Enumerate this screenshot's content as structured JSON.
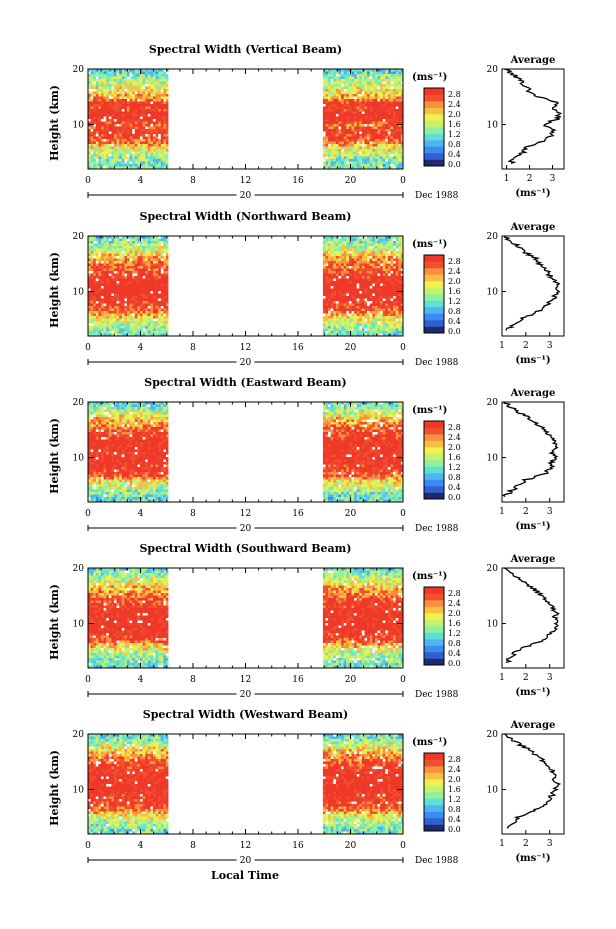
{
  "figure": {
    "xlabel_bottom": "Local Time",
    "date_label": "Dec 1988",
    "day_label": "20",
    "unit_label": "(ms⁻¹)",
    "ylabel": "Height (km)",
    "avg_title": "Average",
    "avg_xlabel": "(ms⁻¹)"
  },
  "colors": {
    "scale": [
      "#1e2a6e",
      "#2f5fd0",
      "#3a8df0",
      "#4fb4f0",
      "#5ee0d8",
      "#8ef0a0",
      "#c8f070",
      "#f0f050",
      "#f8c040",
      "#f89040",
      "#f05030",
      "#f03828"
    ],
    "gap": "#ffffff"
  },
  "chart_data": [
    {
      "type": "heatmap",
      "title": "Spectral Width (Vertical Beam)",
      "x_ticks": [
        "0",
        "4",
        "8",
        "12",
        "16",
        "20",
        "0"
      ],
      "y_ticks": [
        "10",
        "20"
      ],
      "ylim": [
        2,
        20
      ],
      "xlim": [
        0,
        24
      ],
      "data_x_ranges": [
        [
          0,
          6.1
        ],
        [
          17.9,
          24
        ]
      ],
      "colorbar_ticks": [
        "2.8",
        "2.4",
        "2.0",
        "1.6",
        "1.2",
        "0.8",
        "0.4",
        "0.0"
      ],
      "average": {
        "title": "Average",
        "xlim": [
          0.8,
          3.5
        ],
        "x_ticks": [
          "1",
          "2",
          "3"
        ],
        "y_ticks": [
          "10",
          "20"
        ],
        "heights": [
          3,
          4,
          5,
          6,
          7,
          8,
          9,
          10,
          11,
          12,
          13,
          14,
          15,
          16,
          17,
          18,
          19,
          20
        ],
        "values": [
          1.2,
          1.3,
          1.7,
          1.9,
          2.6,
          2.9,
          3.1,
          2.6,
          3.2,
          3.3,
          3.0,
          3.2,
          2.4,
          2.0,
          1.8,
          1.6,
          1.3,
          0.9
        ]
      }
    },
    {
      "type": "heatmap",
      "title": "Spectral Width (Northward Beam)",
      "x_ticks": [
        "0",
        "4",
        "8",
        "12",
        "16",
        "20",
        "0"
      ],
      "y_ticks": [
        "10",
        "20"
      ],
      "ylim": [
        2,
        20
      ],
      "xlim": [
        0,
        24
      ],
      "data_x_ranges": [
        [
          0,
          6.1
        ],
        [
          17.9,
          24
        ]
      ],
      "colorbar_ticks": [
        "2.8",
        "2.4",
        "2.0",
        "1.6",
        "1.2",
        "0.8",
        "0.4",
        "0.0"
      ],
      "average": {
        "title": "Average",
        "xlim": [
          1.0,
          3.6
        ],
        "x_ticks": [
          "1",
          "2",
          "3"
        ],
        "y_ticks": [
          "10",
          "20"
        ],
        "heights": [
          3,
          4,
          5,
          6,
          7,
          8,
          9,
          10,
          11,
          12,
          13,
          14,
          15,
          16,
          17,
          18,
          19,
          20
        ],
        "values": [
          1.2,
          1.5,
          1.8,
          2.3,
          2.8,
          3.0,
          3.2,
          3.3,
          3.4,
          3.2,
          3.0,
          2.8,
          2.6,
          2.4,
          2.0,
          1.7,
          1.4,
          1.1
        ]
      }
    },
    {
      "type": "heatmap",
      "title": "Spectral Width (Eastward Beam)",
      "x_ticks": [
        "0",
        "4",
        "8",
        "12",
        "16",
        "20",
        "0"
      ],
      "y_ticks": [
        "10",
        "20"
      ],
      "ylim": [
        2,
        20
      ],
      "xlim": [
        0,
        24
      ],
      "data_x_ranges": [
        [
          0,
          6.1
        ],
        [
          17.9,
          24
        ]
      ],
      "colorbar_ticks": [
        "2.8",
        "2.4",
        "2.0",
        "1.6",
        "1.2",
        "0.8",
        "0.4",
        "0.0"
      ],
      "average": {
        "title": "Average",
        "xlim": [
          1.0,
          3.6
        ],
        "x_ticks": [
          "1",
          "2",
          "3"
        ],
        "y_ticks": [
          "10",
          "20"
        ],
        "heights": [
          3,
          4,
          5,
          6,
          7,
          8,
          9,
          10,
          11,
          12,
          13,
          14,
          15,
          16,
          17,
          18,
          19,
          20
        ],
        "values": [
          1.1,
          1.4,
          1.7,
          2.0,
          2.8,
          3.0,
          3.1,
          3.2,
          3.1,
          3.3,
          3.2,
          3.0,
          2.8,
          2.5,
          2.2,
          1.8,
          1.4,
          1.1
        ]
      }
    },
    {
      "type": "heatmap",
      "title": "Spectral Width (Southward Beam)",
      "x_ticks": [
        "0",
        "4",
        "8",
        "12",
        "16",
        "20",
        "0"
      ],
      "y_ticks": [
        "10",
        "20"
      ],
      "ylim": [
        2,
        20
      ],
      "xlim": [
        0,
        24
      ],
      "data_x_ranges": [
        [
          0,
          6.1
        ],
        [
          17.9,
          24
        ]
      ],
      "colorbar_ticks": [
        "2.8",
        "2.4",
        "2.0",
        "1.6",
        "1.2",
        "0.8",
        "0.4",
        "0.0"
      ],
      "average": {
        "title": "Average",
        "xlim": [
          1.0,
          3.6
        ],
        "x_ticks": [
          "1",
          "2",
          "3"
        ],
        "y_ticks": [
          "10",
          "20"
        ],
        "heights": [
          3,
          4,
          5,
          6,
          7,
          8,
          9,
          10,
          11,
          12,
          13,
          14,
          15,
          16,
          17,
          18,
          19,
          20
        ],
        "values": [
          1.2,
          1.4,
          1.6,
          2.1,
          2.7,
          3.0,
          3.2,
          3.3,
          3.2,
          3.3,
          3.1,
          2.9,
          2.7,
          2.4,
          2.1,
          1.7,
          1.4,
          1.1
        ]
      }
    },
    {
      "type": "heatmap",
      "title": "Spectral Width (Westward Beam)",
      "x_ticks": [
        "0",
        "4",
        "8",
        "12",
        "16",
        "20",
        "0"
      ],
      "y_ticks": [
        "10",
        "20"
      ],
      "ylim": [
        2,
        20
      ],
      "xlim": [
        0,
        24
      ],
      "data_x_ranges": [
        [
          0,
          6.1
        ],
        [
          17.9,
          24
        ]
      ],
      "colorbar_ticks": [
        "2.8",
        "2.4",
        "2.0",
        "1.6",
        "1.2",
        "0.8",
        "0.4",
        "0.0"
      ],
      "average": {
        "title": "Average",
        "xlim": [
          1.0,
          3.6
        ],
        "x_ticks": [
          "1",
          "2",
          "3"
        ],
        "y_ticks": [
          "10",
          "20"
        ],
        "heights": [
          3,
          4,
          5,
          6,
          7,
          8,
          9,
          10,
          11,
          12,
          13,
          14,
          15,
          16,
          17,
          18,
          19,
          20
        ],
        "values": [
          1.2,
          1.5,
          1.7,
          2.2,
          2.8,
          3.0,
          3.1,
          3.2,
          3.3,
          3.1,
          3.2,
          3.0,
          2.8,
          2.5,
          2.2,
          1.8,
          1.4,
          1.1
        ]
      }
    }
  ]
}
